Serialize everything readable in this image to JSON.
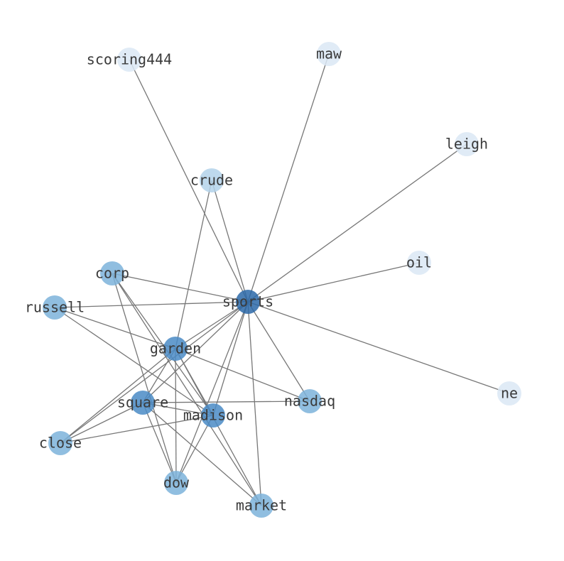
{
  "nodes": [
    {
      "label": "scoring444"
    },
    {
      "label": "maw"
    },
    {
      "label": "leigh"
    },
    {
      "label": "crude"
    },
    {
      "label": "oil"
    },
    {
      "label": "sports"
    },
    {
      "label": "corp"
    },
    {
      "label": "russell"
    },
    {
      "label": "garden"
    },
    {
      "label": "square"
    },
    {
      "label": "madison"
    },
    {
      "label": "nasdaq"
    },
    {
      "label": "ne"
    },
    {
      "label": "close"
    },
    {
      "label": "dow"
    },
    {
      "label": "market"
    }
  ]
}
